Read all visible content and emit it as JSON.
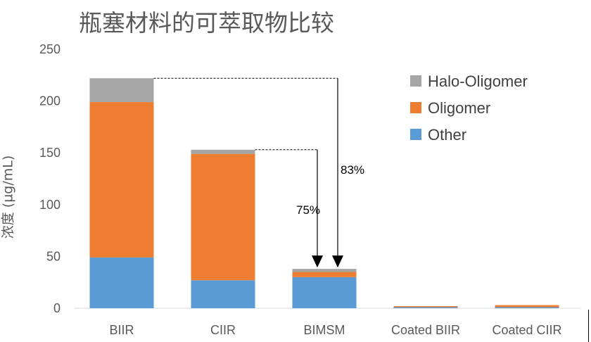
{
  "chart_data": {
    "type": "bar",
    "stacked": true,
    "title": "瓶塞材料的可萃取物比较",
    "xlabel": "",
    "ylabel": "浓度 (µg/mL)",
    "ylim": [
      0,
      250
    ],
    "yticks": [
      "0",
      "50",
      "100",
      "150",
      "200",
      "250"
    ],
    "grid": false,
    "legend_position": "top-right",
    "categories": [
      "BIIR",
      "CIIR",
      "BIMSM",
      "Coated BIIR",
      "Coated CIIR"
    ],
    "series": [
      {
        "name": "Other",
        "color": "#5B9BD5",
        "values": [
          49,
          27,
          30,
          1,
          1
        ]
      },
      {
        "name": "Oligomer",
        "color": "#ED7D31",
        "values": [
          150,
          122,
          5,
          1,
          2
        ]
      },
      {
        "name": "Halo-Oligomer",
        "color": "#A5A5A5",
        "values": [
          23,
          4,
          3,
          0,
          0
        ]
      }
    ],
    "legend_order": [
      "Halo-Oligomer",
      "Oligomer",
      "Other"
    ],
    "annotations": [
      {
        "label": "83%",
        "from": "BIIR",
        "to": "BIMSM"
      },
      {
        "label": "75%",
        "from": "CIIR",
        "to": "BIMSM"
      }
    ]
  }
}
